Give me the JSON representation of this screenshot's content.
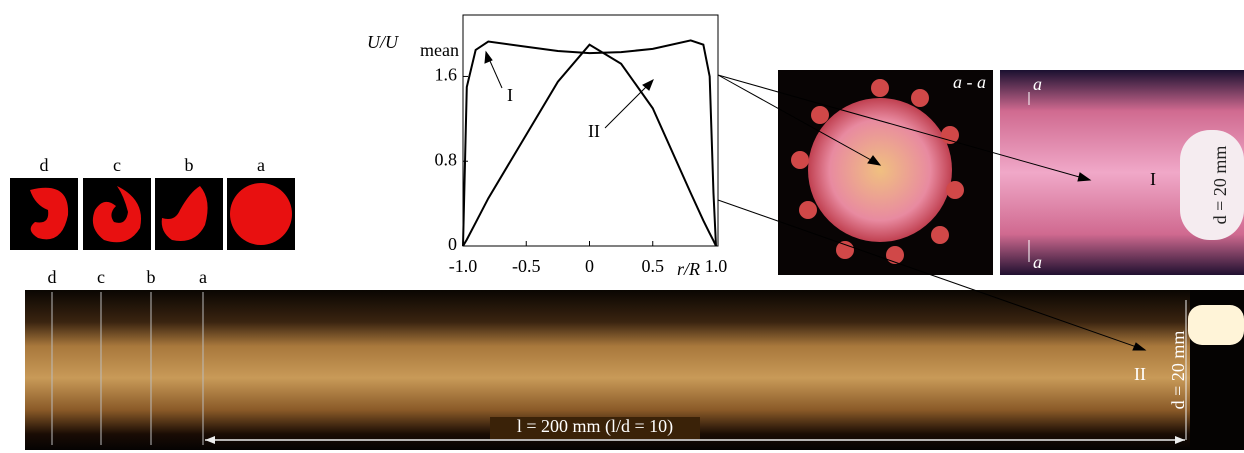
{
  "figure": {
    "profile_labels": [
      "d",
      "c",
      "b",
      "a"
    ],
    "section_labels": [
      "d",
      "c",
      "b",
      "a"
    ],
    "cross_section_label": "a - a",
    "cut_labels": [
      "a",
      "a"
    ],
    "diameter_labels": [
      "d = 20 mm",
      "d = 20 mm"
    ],
    "length_label": "l = 200 mm (l/d = 10)"
  },
  "chart_data": {
    "type": "line",
    "x_label": "r/R",
    "y_label": "U/U",
    "y_label_sub": "mean",
    "x": [
      -1,
      -0.97,
      -0.9,
      -0.8,
      -0.5,
      -0.25,
      0,
      0.25,
      0.5,
      0.8,
      0.9,
      0.95,
      0.98,
      1
    ],
    "series": [
      {
        "name": "I",
        "color": "#000000",
        "values": [
          0,
          1.5,
          1.85,
          1.93,
          1.88,
          1.84,
          1.82,
          1.83,
          1.86,
          1.94,
          1.9,
          1.6,
          0.5,
          0
        ]
      },
      {
        "name": "II",
        "color": "#000000",
        "values": [
          0,
          0.06,
          0.22,
          0.45,
          1.05,
          1.55,
          1.9,
          1.72,
          1.3,
          0.5,
          0.24,
          0.12,
          0.05,
          0
        ]
      }
    ],
    "xlim": [
      -1,
      1
    ],
    "ylim": [
      0,
      2.18
    ],
    "xticks": [
      {
        "value": -1,
        "label": "-1.0"
      },
      -0.5,
      0,
      0.5,
      {
        "value": 1,
        "label": "1.0"
      }
    ],
    "yticks": [
      0,
      0.8,
      1.6
    ]
  }
}
